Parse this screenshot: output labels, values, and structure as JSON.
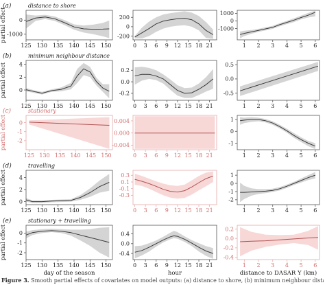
{
  "colors": {
    "gray_band": "#d4d4d4",
    "gray_line": "#3a3a3a",
    "red_band": "#f8d7d7",
    "red_line": "#b05050",
    "red_axis": "#e7a9a9",
    "red_text": "#d26d6d",
    "axis": "#555555",
    "text": "#222222"
  },
  "axis_labels": {
    "ylabel": "partial effect",
    "x_col1": "day of the season",
    "x_col2": "hour",
    "x_col3": "distance to DASAR Y (km)"
  },
  "caption": {
    "label": "Figure 3.",
    "text": "Smooth partial effects of covariates on model outputs: (a) distance to shore, (b) minimum neighbour distance..."
  },
  "chart_data": [
    {
      "type": "line",
      "row": "(a)",
      "title": "distance to shore",
      "col": 1,
      "significant": true,
      "xlim": [
        125,
        152
      ],
      "ylim": [
        -1400,
        700
      ],
      "xticks": [
        125,
        130,
        135,
        140,
        145,
        150
      ],
      "yticks": [
        -1000,
        0
      ],
      "yticklabels": [
        "-1000",
        "0"
      ],
      "x": [
        125,
        128,
        131,
        134,
        137,
        140,
        143,
        146,
        149,
        151
      ],
      "y": [
        -100,
        150,
        220,
        100,
        -180,
        -480,
        -620,
        -650,
        -640,
        -620
      ],
      "lower": [
        -600,
        -50,
        80,
        -60,
        -350,
        -680,
        -880,
        -1000,
        -1150,
        -1280
      ],
      "upper": [
        400,
        330,
        380,
        260,
        0,
        -300,
        -380,
        -320,
        -200,
        -30
      ]
    },
    {
      "type": "line",
      "row": "(a)",
      "col": 2,
      "significant": true,
      "xlim": [
        -0.5,
        23
      ],
      "ylim": [
        -280,
        350
      ],
      "xticks": [
        0,
        3,
        6,
        9,
        12,
        15,
        18,
        21
      ],
      "yticks": [
        -200,
        0,
        200
      ],
      "yticklabels": [
        "-200",
        "0",
        "200"
      ],
      "x": [
        0,
        2,
        4,
        6,
        8,
        10,
        12,
        14,
        16,
        18,
        20,
        22
      ],
      "y": [
        -220,
        -130,
        -40,
        60,
        120,
        150,
        170,
        180,
        150,
        60,
        -80,
        -170
      ],
      "lower": [
        -250,
        -250,
        -200,
        -110,
        -40,
        0,
        20,
        30,
        0,
        -80,
        -240,
        -260
      ],
      "upper": [
        -200,
        -20,
        110,
        200,
        260,
        290,
        310,
        330,
        300,
        230,
        100,
        -60
      ]
    },
    {
      "type": "line",
      "row": "(a)",
      "col": 3,
      "significant": true,
      "xlim": [
        0.5,
        6.3
      ],
      "ylim": [
        -2500,
        1400
      ],
      "xticks": [
        1,
        2,
        3,
        4,
        5,
        6
      ],
      "yticks": [
        -1000,
        0,
        1000
      ],
      "yticklabels": [
        "-1000",
        "0",
        "1000"
      ],
      "x": [
        0.7,
        1,
        1.5,
        2,
        2.5,
        3,
        3.5,
        4,
        4.5,
        5,
        5.5,
        6
      ],
      "y": [
        -1800,
        -1650,
        -1450,
        -1250,
        -1050,
        -850,
        -500,
        -200,
        100,
        450,
        750,
        1150
      ],
      "lower": [
        -2300,
        -2000,
        -1700,
        -1450,
        -1250,
        -1050,
        -700,
        -420,
        -150,
        200,
        450,
        600
      ],
      "upper": [
        -1400,
        -1300,
        -1200,
        -1050,
        -850,
        -650,
        -300,
        0,
        350,
        700,
        1050,
        1350
      ]
    },
    {
      "type": "line",
      "row": "(b)",
      "title": "minimum neighbour distance",
      "col": 1,
      "significant": true,
      "xlim": [
        125,
        152
      ],
      "ylim": [
        -1.6,
        4.6
      ],
      "xticks": [
        125,
        130,
        135,
        140,
        145,
        150
      ],
      "yticks": [
        0,
        2,
        4
      ],
      "yticklabels": [
        "0",
        "2",
        "4"
      ],
      "x": [
        125,
        128,
        130,
        133,
        136,
        139,
        141,
        143,
        145,
        147,
        149,
        151
      ],
      "y": [
        0.05,
        -0.3,
        -0.5,
        -0.1,
        0.1,
        0.6,
        2.2,
        3.3,
        2.8,
        1.3,
        0.3,
        -0.2
      ],
      "lower": [
        -0.2,
        -0.5,
        -0.7,
        -0.3,
        -0.2,
        0.1,
        1.1,
        2.3,
        2.0,
        0.7,
        -0.3,
        -1.3
      ],
      "upper": [
        0.3,
        -0.1,
        -0.3,
        0.1,
        0.4,
        1.1,
        3.3,
        4.2,
        3.6,
        1.9,
        0.9,
        0.9
      ]
    },
    {
      "type": "line",
      "row": "(b)",
      "col": 2,
      "significant": true,
      "xlim": [
        -0.5,
        23
      ],
      "ylim": [
        -0.32,
        0.37
      ],
      "xticks": [
        0,
        3,
        6,
        9,
        12,
        15,
        18,
        21
      ],
      "yticks": [
        -0.2,
        0,
        0.2
      ],
      "yticklabels": [
        "-0.2",
        "0.0",
        "0.2"
      ],
      "x": [
        0,
        2,
        4,
        6,
        8,
        10,
        12,
        14,
        16,
        18,
        20,
        22
      ],
      "y": [
        0.1,
        0.13,
        0.13,
        0.1,
        0.05,
        -0.05,
        -0.15,
        -0.2,
        -0.19,
        -0.13,
        -0.05,
        0.05
      ],
      "lower": [
        -0.05,
        0.02,
        0.05,
        0.03,
        -0.03,
        -0.14,
        -0.24,
        -0.28,
        -0.28,
        -0.23,
        -0.17,
        -0.12
      ],
      "upper": [
        0.25,
        0.26,
        0.24,
        0.2,
        0.13,
        0.04,
        -0.06,
        -0.11,
        -0.1,
        -0.03,
        0.08,
        0.22
      ]
    },
    {
      "type": "line",
      "row": "(b)",
      "col": 3,
      "significant": true,
      "xlim": [
        0.5,
        6.3
      ],
      "ylim": [
        -0.75,
        0.65
      ],
      "xticks": [
        1,
        2,
        3,
        4,
        5,
        6
      ],
      "yticks": [
        -0.5,
        0,
        0.5
      ],
      "yticklabels": [
        "-0.5",
        "0.0",
        "0.5"
      ],
      "x": [
        0.7,
        6.2
      ],
      "y": [
        -0.42,
        0.45
      ],
      "lower": [
        -0.6,
        0.28
      ],
      "upper": [
        -0.26,
        0.6
      ]
    },
    {
      "type": "line",
      "row": "(c)",
      "title": "stationary",
      "col": 1,
      "significant": false,
      "xlim": [
        124,
        152
      ],
      "ylim": [
        -3,
        0.8
      ],
      "xticks": [
        125,
        130,
        135,
        140,
        145,
        150
      ],
      "yticks": [
        -2,
        -1,
        0
      ],
      "yticklabels": [
        "-2",
        "-1",
        "0"
      ],
      "x": [
        125,
        151
      ],
      "y": [
        0.05,
        -0.3
      ],
      "lower": [
        -0.2,
        -2.9
      ],
      "upper": [
        0.25,
        0.6
      ]
    },
    {
      "type": "line",
      "row": "(c)",
      "col": 2,
      "significant": false,
      "xlim": [
        -0.5,
        23
      ],
      "ylim": [
        -0.0055,
        0.0058
      ],
      "xticks": [
        0,
        3,
        6,
        9,
        12,
        15,
        18,
        21
      ],
      "yticks": [
        -0.004,
        0,
        0.004
      ],
      "yticklabels": [
        "-0.004",
        "0.000",
        "0.004"
      ],
      "x": [
        0,
        22.5
      ],
      "y": [
        0,
        0
      ],
      "lower": [
        -0.0052,
        -0.0052
      ],
      "upper": [
        0.0055,
        0.0055
      ]
    },
    {
      "type": "line",
      "row": "(c)",
      "col": 3,
      "significant": true,
      "xlim": [
        0.5,
        6.3
      ],
      "ylim": [
        -1.55,
        1.35
      ],
      "xticks": [
        1,
        2,
        3,
        4,
        5,
        6
      ],
      "yticks": [
        -1,
        0,
        1
      ],
      "yticklabels": [
        "-1",
        "0",
        "1"
      ],
      "x": [
        0.7,
        1,
        1.5,
        2,
        2.5,
        3,
        3.5,
        4,
        4.5,
        5,
        5.5,
        6
      ],
      "y": [
        0.9,
        0.95,
        1.0,
        1.0,
        0.9,
        0.7,
        0.4,
        0.05,
        -0.35,
        -0.7,
        -1.0,
        -1.25
      ],
      "lower": [
        0.55,
        0.7,
        0.8,
        0.85,
        0.75,
        0.55,
        0.25,
        -0.12,
        -0.55,
        -0.9,
        -1.25,
        -1.5
      ],
      "upper": [
        1.2,
        1.15,
        1.2,
        1.15,
        1.05,
        0.85,
        0.55,
        0.22,
        -0.15,
        -0.5,
        -0.8,
        -1.0
      ]
    },
    {
      "type": "line",
      "row": "(d)",
      "title": "travelling",
      "col": 1,
      "significant": true,
      "xlim": [
        125,
        152
      ],
      "ylim": [
        -0.5,
        5.2
      ],
      "xticks": [
        125,
        130,
        135,
        140,
        145,
        150
      ],
      "yticks": [
        0,
        2,
        4
      ],
      "yticklabels": [
        "0",
        "2",
        "4"
      ],
      "x": [
        125,
        127,
        130,
        133,
        136,
        139,
        142,
        145,
        148,
        151
      ],
      "y": [
        0.3,
        0,
        0,
        0.1,
        0.15,
        0.2,
        0.7,
        1.5,
        2.5,
        3.2
      ],
      "lower": [
        0,
        -0.2,
        -0.2,
        -0.1,
        -0.05,
        0,
        0.3,
        0.8,
        1.5,
        1.8
      ],
      "upper": [
        0.6,
        0.2,
        0.2,
        0.3,
        0.35,
        0.4,
        1.1,
        2.2,
        3.5,
        4.6
      ]
    },
    {
      "type": "line",
      "row": "(d)",
      "col": 2,
      "significant": false,
      "xlim": [
        -0.5,
        23
      ],
      "ylim": [
        -0.58,
        0.45
      ],
      "xticks": [
        0,
        3,
        6,
        9,
        12,
        15,
        18,
        21
      ],
      "yticks": [
        -0.3,
        -0.1,
        0.1,
        0.3
      ],
      "yticklabels": [
        "-0.3",
        "-0.1",
        "0.1",
        "0.3"
      ],
      "x": [
        0,
        2,
        4,
        6,
        8,
        10,
        12,
        14,
        16,
        18,
        20,
        22
      ],
      "y": [
        0.18,
        0.12,
        0.05,
        -0.03,
        -0.12,
        -0.18,
        -0.2,
        -0.16,
        -0.05,
        0.08,
        0.2,
        0.28
      ],
      "lower": [
        0.02,
        -0.02,
        -0.1,
        -0.2,
        -0.3,
        -0.37,
        -0.4,
        -0.38,
        -0.28,
        -0.15,
        -0.03,
        0.1
      ],
      "upper": [
        0.35,
        0.28,
        0.2,
        0.12,
        0.05,
        0,
        -0.02,
        0.02,
        0.15,
        0.28,
        0.38,
        0.42
      ]
    },
    {
      "type": "line",
      "row": "(d)",
      "col": 3,
      "significant": true,
      "xlim": [
        0.5,
        6.3
      ],
      "ylim": [
        -2.6,
        1.6
      ],
      "xticks": [
        1,
        2,
        3,
        4,
        5,
        6
      ],
      "yticks": [
        -2,
        -1,
        0,
        1
      ],
      "yticklabels": [
        "-2",
        "-1",
        "0",
        "1"
      ],
      "x": [
        0.7,
        1,
        1.5,
        2,
        2.5,
        3,
        3.5,
        4,
        4.5,
        5,
        5.5,
        6
      ],
      "y": [
        -1.1,
        -1.1,
        -1.05,
        -1.0,
        -0.95,
        -0.85,
        -0.65,
        -0.35,
        0.0,
        0.35,
        0.7,
        1.0
      ],
      "lower": [
        -2.3,
        -1.9,
        -1.5,
        -1.3,
        -1.2,
        -1.05,
        -0.85,
        -0.55,
        -0.2,
        0.1,
        0.4,
        0.6
      ],
      "upper": [
        0.1,
        -0.3,
        -0.6,
        -0.7,
        -0.7,
        -0.65,
        -0.45,
        -0.15,
        0.2,
        0.6,
        1.0,
        1.4
      ]
    },
    {
      "type": "line",
      "row": "(e)",
      "title": "stationary + travelling",
      "col": 1,
      "significant": true,
      "xlim": [
        125,
        152
      ],
      "ylim": [
        -2.7,
        0.8
      ],
      "xticks": [
        125,
        130,
        135,
        140,
        145,
        150
      ],
      "yticks": [
        -2,
        -1,
        0
      ],
      "yticklabels": [
        "-2",
        "-1",
        "0"
      ],
      "x": [
        125,
        127,
        130,
        133,
        136,
        139,
        142,
        145,
        148,
        151
      ],
      "y": [
        -0.2,
        0.05,
        0.2,
        0.25,
        0.2,
        0.05,
        -0.2,
        -0.45,
        -0.7,
        -0.95
      ],
      "lower": [
        -0.55,
        -0.2,
        0.0,
        0.1,
        0.0,
        -0.25,
        -0.75,
        -1.3,
        -2.0,
        -2.5
      ],
      "upper": [
        0.15,
        0.3,
        0.4,
        0.45,
        0.4,
        0.35,
        0.35,
        0.4,
        0.55,
        0.6
      ]
    },
    {
      "type": "line",
      "row": "(e)",
      "col": 2,
      "significant": true,
      "xlim": [
        -0.5,
        23
      ],
      "ylim": [
        -0.65,
        0.75
      ],
      "xticks": [
        0,
        3,
        6,
        9,
        12,
        15,
        18,
        21
      ],
      "yticks": [
        -0.4,
        0,
        0.4
      ],
      "yticklabels": [
        "-0.4",
        "0.0",
        "0.4"
      ],
      "x": [
        0,
        2,
        4,
        6,
        8,
        10,
        11,
        12,
        14,
        16,
        18,
        20,
        22
      ],
      "y": [
        -0.35,
        -0.28,
        -0.15,
        0.0,
        0.15,
        0.28,
        0.32,
        0.3,
        0.18,
        0.02,
        -0.15,
        -0.3,
        -0.4
      ],
      "lower": [
        -0.6,
        -0.48,
        -0.32,
        -0.12,
        0.05,
        0.18,
        0.22,
        0.2,
        0.07,
        -0.1,
        -0.32,
        -0.5,
        -0.62
      ],
      "upper": [
        -0.1,
        -0.08,
        0.02,
        0.13,
        0.28,
        0.45,
        0.52,
        0.47,
        0.3,
        0.14,
        0.02,
        -0.1,
        -0.18
      ]
    },
    {
      "type": "line",
      "row": "(e)",
      "col": 3,
      "significant": false,
      "xlim": [
        0.5,
        6.3
      ],
      "ylim": [
        -0.45,
        0.28
      ],
      "xticks": [
        1,
        2,
        3,
        4,
        5,
        6
      ],
      "yticks": [
        -0.4,
        -0.2,
        0,
        0.2
      ],
      "yticklabels": [
        "-0.4",
        "-0.2",
        "0.0",
        "0.2"
      ],
      "x": [
        0.7,
        1.5,
        2.5,
        3.5,
        4.5,
        5.5,
        6.2
      ],
      "y": [
        -0.07,
        -0.06,
        -0.05,
        -0.03,
        -0.01,
        0.01,
        0.02
      ],
      "lower": [
        -0.38,
        -0.26,
        -0.18,
        -0.13,
        -0.1,
        -0.14,
        -0.24
      ],
      "upper": [
        0.24,
        0.14,
        0.08,
        0.07,
        0.08,
        0.16,
        0.26
      ]
    }
  ]
}
